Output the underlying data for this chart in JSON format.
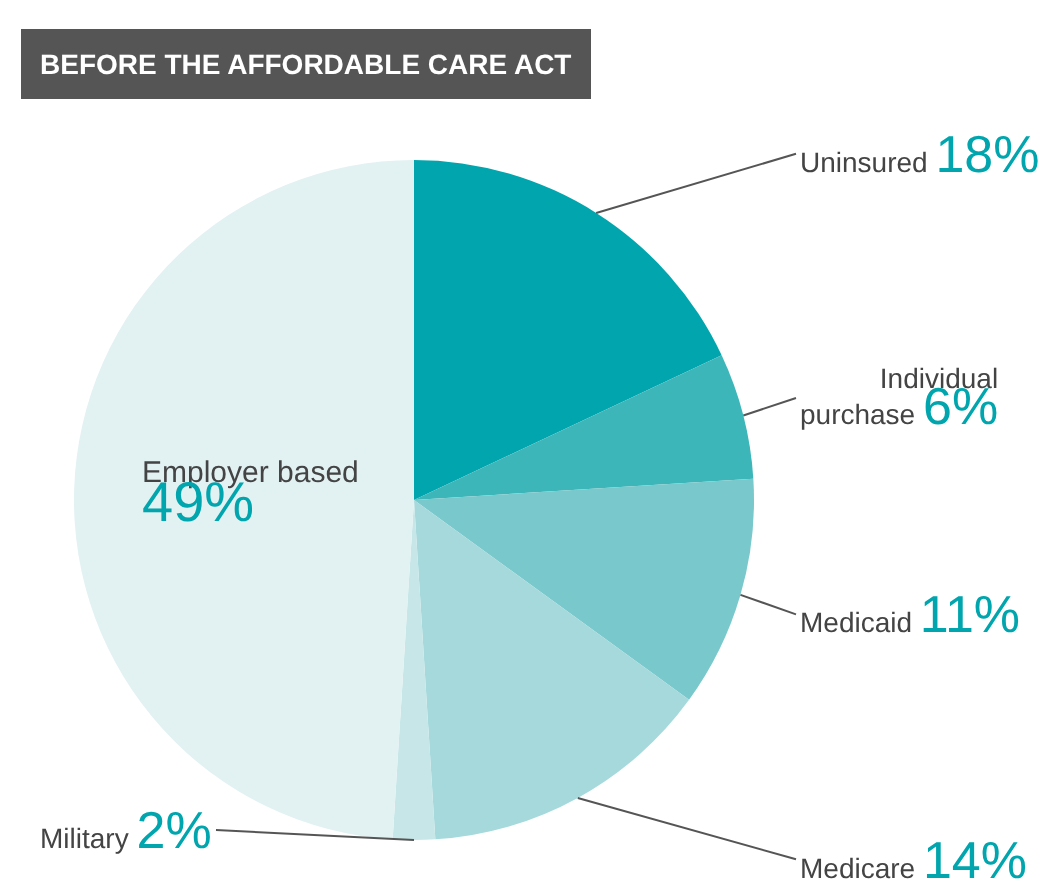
{
  "chart_data": {
    "type": "pie",
    "title": "BEFORE THE AFFORDABLE CARE ACT",
    "categories": [
      "Uninsured",
      "Individual purchase",
      "Medicaid",
      "Medicare",
      "Military",
      "Employer based"
    ],
    "values": [
      18,
      6,
      11,
      14,
      2,
      49
    ],
    "value_labels": [
      "18%",
      "6%",
      "11%",
      "14%",
      "2%",
      "49%"
    ],
    "colors": [
      "#00a5ad",
      "#3db6ba",
      "#79c8cb",
      "#a5d9dc",
      "#c6e6e8",
      "#e2f1f2"
    ],
    "legend": false
  }
}
